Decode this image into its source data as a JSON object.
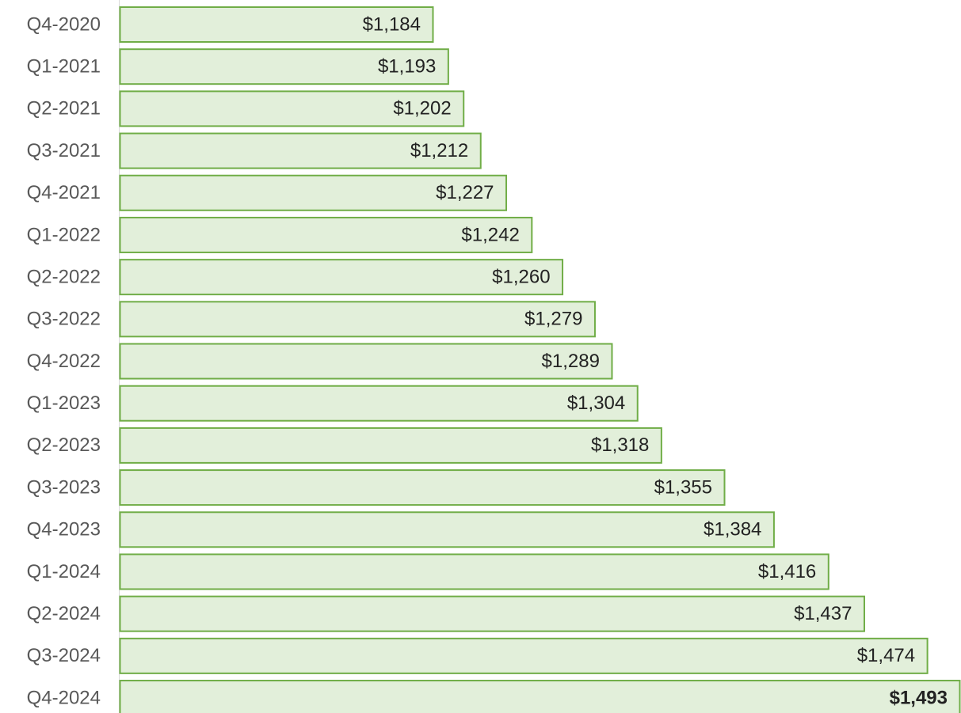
{
  "chart_data": {
    "type": "bar",
    "orientation": "horizontal",
    "categories": [
      "Q4-2020",
      "Q1-2021",
      "Q2-2021",
      "Q3-2021",
      "Q4-2021",
      "Q1-2022",
      "Q2-2022",
      "Q3-2022",
      "Q4-2022",
      "Q1-2023",
      "Q2-2023",
      "Q3-2023",
      "Q4-2023",
      "Q1-2024",
      "Q2-2024",
      "Q3-2024",
      "Q4-2024"
    ],
    "values": [
      1184,
      1193,
      1202,
      1212,
      1227,
      1242,
      1260,
      1279,
      1289,
      1304,
      1318,
      1355,
      1384,
      1416,
      1437,
      1474,
      1493
    ],
    "value_labels": [
      "$1,184",
      "$1,193",
      "$1,202",
      "$1,212",
      "$1,227",
      "$1,242",
      "$1,260",
      "$1,279",
      "$1,289",
      "$1,304",
      "$1,318",
      "$1,355",
      "$1,384",
      "$1,416",
      "$1,437",
      "$1,474",
      "$1,493"
    ],
    "color": "#e2efda",
    "edge_color": "#70ad47",
    "emphasis": "Q4-2024",
    "xlim": [
      1000,
      1493
    ]
  }
}
